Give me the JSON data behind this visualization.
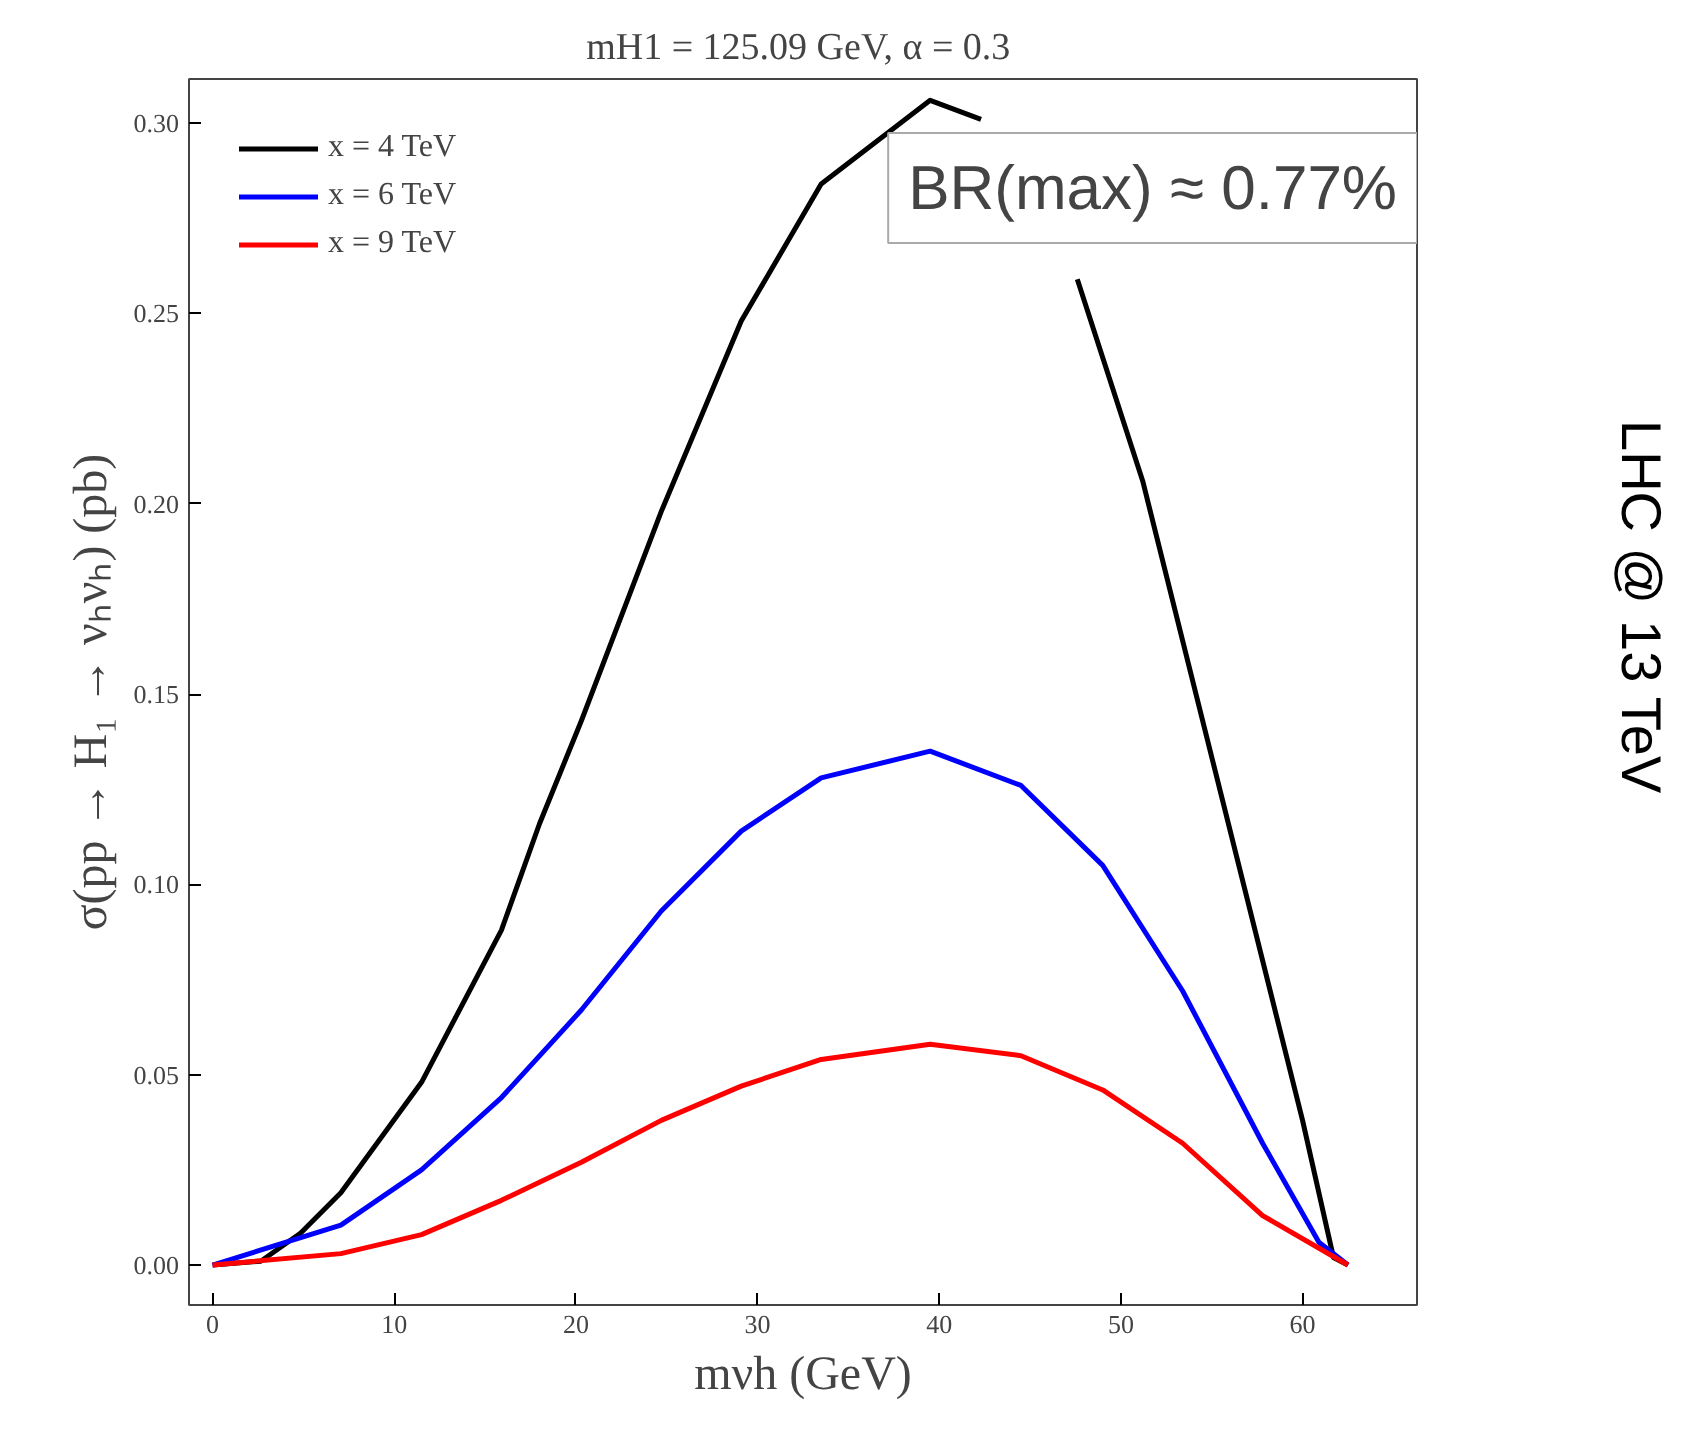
{
  "chart_data": {
    "type": "line",
    "title": "mH1 = 125.09 GeV,  α = 0.3",
    "xlabel": "mνh (GeV)",
    "ylabel": "σ(pp → H₁ → νₕνₕ) (pb)",
    "xlim": [
      -1.3,
      66.3
    ],
    "ylim": [
      -0.0105,
      0.3116
    ],
    "xticks": [
      0,
      10,
      20,
      30,
      40,
      50,
      60
    ],
    "yticks": [
      {
        "value": 0,
        "label": "0.00"
      },
      0.05,
      {
        "value": 0.1,
        "label": "0.10"
      },
      0.15,
      {
        "value": 0.2,
        "label": "0.20"
      },
      0.25,
      {
        "value": 0.3,
        "label": "0.30"
      }
    ],
    "grid": false,
    "legend": "top left",
    "line_style": "solid",
    "marker": "none",
    "annotations": [
      "BR(max) ≈ 0.77%",
      "LHC @ 13 TeV"
    ],
    "series": [
      {
        "name": "x = 4 TeV",
        "color": "#000000",
        "x": [
          0,
          2.65,
          4.85,
          7.06,
          11.5,
          15.9,
          18.0,
          20.3,
          24.7,
          29.1,
          33.5,
          39.5,
          42.3,
          45,
          47.6,
          51.2,
          55.6,
          60.0,
          61.7,
          62.5
        ],
        "values": [
          0,
          0.001,
          0.0084,
          0.019,
          0.048,
          0.088,
          0.116,
          0.143,
          0.198,
          0.248,
          0.284,
          0.306,
          0.301,
          null,
          0.259,
          0.206,
          0.122,
          0.038,
          0.002,
          0
        ]
      },
      {
        "name": "x = 6 TeV",
        "color": "#0000ff",
        "x": [
          0,
          7.06,
          11.5,
          15.9,
          20.3,
          24.7,
          29.1,
          33.5,
          39.5,
          44.5,
          49.0,
          53.4,
          57.8,
          60.9,
          62.5
        ],
        "values": [
          0,
          0.0105,
          0.025,
          0.044,
          0.067,
          0.093,
          0.114,
          0.128,
          0.135,
          0.126,
          0.105,
          0.072,
          0.032,
          0.006,
          0
        ]
      },
      {
        "name": "x = 9 TeV",
        "color": "#ff0000",
        "x": [
          0,
          7.06,
          11.5,
          15.9,
          20.3,
          24.7,
          29.1,
          33.5,
          39.5,
          44.5,
          49.0,
          53.4,
          57.8,
          62.5
        ],
        "values": [
          0,
          0.003,
          0.008,
          0.017,
          0.027,
          0.038,
          0.047,
          0.054,
          0.058,
          0.055,
          0.046,
          0.032,
          0.013,
          0
        ]
      }
    ]
  }
}
